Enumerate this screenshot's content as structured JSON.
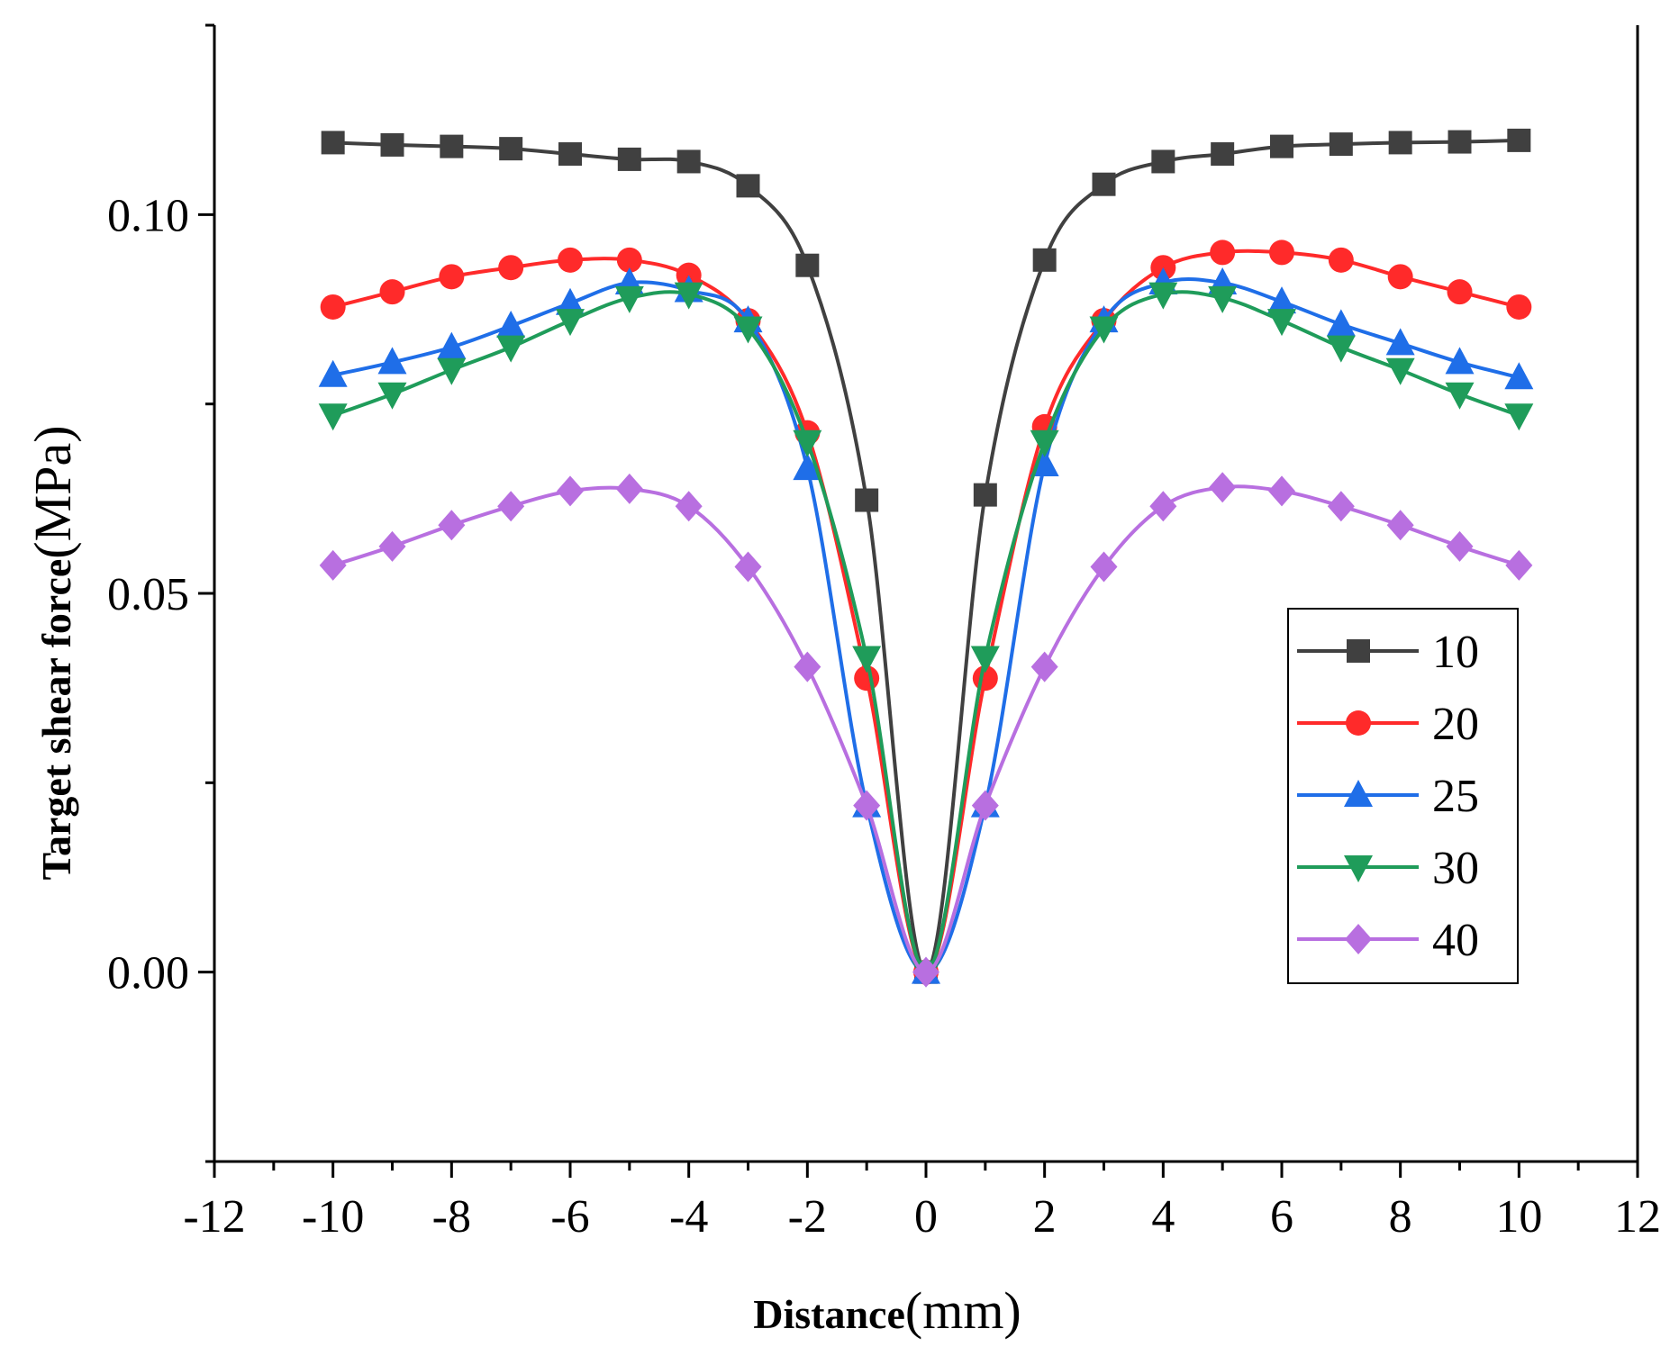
{
  "chart_data": {
    "type": "line",
    "xlabel": "Distance",
    "xlabel_unit": "(mm)",
    "ylabel": "Target shear force",
    "ylabel_unit": "(MPa)",
    "xlim": [
      -12,
      12
    ],
    "ylim": [
      -0.025,
      0.125
    ],
    "x_ticks": [
      -12,
      -10,
      -8,
      -6,
      -4,
      -2,
      0,
      2,
      4,
      6,
      8,
      10,
      12
    ],
    "x_tick_labels": [
      "-12",
      "-10",
      "-8",
      "-6",
      "-4",
      "-2",
      "0",
      "2",
      "4",
      "6",
      "8",
      "10",
      "12"
    ],
    "y_ticks": [
      0.0,
      0.05,
      0.1
    ],
    "y_tick_labels": [
      "0.00",
      "0.05",
      "0.10"
    ],
    "grid": false,
    "legend_position": "bottom-right",
    "x": [
      -10,
      -9,
      -8,
      -7,
      -6,
      -5,
      -4,
      -3,
      -2,
      -1,
      0,
      1,
      2,
      3,
      4,
      5,
      6,
      7,
      8,
      9,
      10
    ],
    "series": [
      {
        "name": "10",
        "color": "#404040",
        "marker": "square",
        "values": [
          0.1095,
          0.1092,
          0.109,
          0.1087,
          0.108,
          0.1073,
          0.107,
          0.1038,
          0.0933,
          0.0623,
          0.0,
          0.063,
          0.094,
          0.104,
          0.107,
          0.108,
          0.109,
          0.1093,
          0.1095,
          0.1096,
          0.1098
        ]
      },
      {
        "name": "20",
        "color": "#ff2a2a",
        "marker": "circle",
        "values": [
          0.0878,
          0.0898,
          0.0918,
          0.093,
          0.094,
          0.094,
          0.092,
          0.086,
          0.0712,
          0.0388,
          0.0,
          0.0388,
          0.072,
          0.086,
          0.093,
          0.095,
          0.095,
          0.094,
          0.0918,
          0.0898,
          0.0878
        ]
      },
      {
        "name": "25",
        "color": "#1f6ee8",
        "marker": "triangle-up",
        "values": [
          0.0788,
          0.0805,
          0.0825,
          0.0853,
          0.0883,
          0.091,
          0.09,
          0.086,
          0.0665,
          0.022,
          0.0,
          0.022,
          0.067,
          0.086,
          0.091,
          0.091,
          0.0885,
          0.0855,
          0.083,
          0.0805,
          0.0785
        ]
      },
      {
        "name": "30",
        "color": "#1f9c5a",
        "marker": "triangle-down",
        "values": [
          0.0735,
          0.0763,
          0.0795,
          0.0825,
          0.086,
          0.089,
          0.0895,
          0.085,
          0.07,
          0.0415,
          0.0,
          0.0415,
          0.07,
          0.085,
          0.0895,
          0.089,
          0.086,
          0.0825,
          0.0795,
          0.0763,
          0.0735
        ]
      },
      {
        "name": "40",
        "color": "#b86fe0",
        "marker": "diamond",
        "values": [
          0.0537,
          0.0562,
          0.059,
          0.0615,
          0.0635,
          0.0638,
          0.0615,
          0.0535,
          0.0403,
          0.022,
          0.0,
          0.022,
          0.0403,
          0.0535,
          0.0615,
          0.064,
          0.0635,
          0.0615,
          0.059,
          0.0562,
          0.0537
        ]
      }
    ]
  }
}
